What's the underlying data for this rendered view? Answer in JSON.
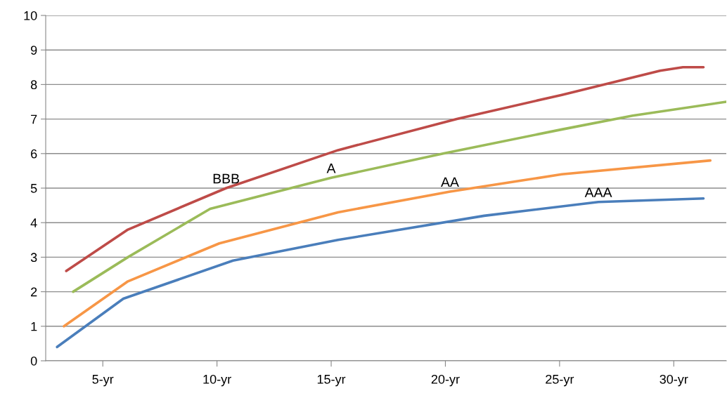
{
  "chart_data": {
    "type": "line",
    "grid": "y",
    "marker": "none",
    "line_style": "solid",
    "xlim": [
      2.5,
      32.3
    ],
    "xticks": [
      {
        "value": 5,
        "label": "5-yr"
      },
      {
        "value": 10,
        "label": "10-yr"
      },
      {
        "value": 15,
        "label": "15-yr"
      },
      {
        "value": 20,
        "label": "20-yr"
      },
      {
        "value": 25,
        "label": "25-yr"
      },
      {
        "value": 30,
        "label": "30-yr"
      }
    ],
    "ylim": [
      0,
      10
    ],
    "yticks": [
      0,
      1,
      2,
      3,
      4,
      5,
      6,
      7,
      8,
      9,
      10
    ],
    "series": [
      {
        "name": "BBB",
        "color": "#be4b48",
        "x": [
          3.4,
          6.1,
          10.4,
          15.3,
          20.5,
          25.1,
          29.4,
          30.4,
          31.3
        ],
        "values": [
          2.6,
          3.8,
          5.0,
          6.1,
          7.0,
          7.7,
          8.4,
          8.5,
          8.5
        ]
      },
      {
        "name": "A",
        "color": "#9bbb59",
        "x": [
          3.7,
          6.1,
          9.7,
          15.0,
          19.9,
          25.1,
          28.2,
          32.3
        ],
        "values": [
          2.0,
          3.0,
          4.4,
          5.3,
          6.0,
          6.7,
          7.1,
          7.5
        ]
      },
      {
        "name": "AA",
        "color": "#f79646",
        "x": [
          3.3,
          6.1,
          10.1,
          15.3,
          20.2,
          25.1,
          31.6
        ],
        "values": [
          1.0,
          2.3,
          3.4,
          4.3,
          4.9,
          5.4,
          5.8
        ]
      },
      {
        "name": "AAA",
        "color": "#4a7ebb",
        "x": [
          3.0,
          5.9,
          10.7,
          15.3,
          21.7,
          26.7,
          31.3
        ],
        "values": [
          0.4,
          1.8,
          2.9,
          3.5,
          4.2,
          4.6,
          4.7
        ]
      }
    ]
  }
}
